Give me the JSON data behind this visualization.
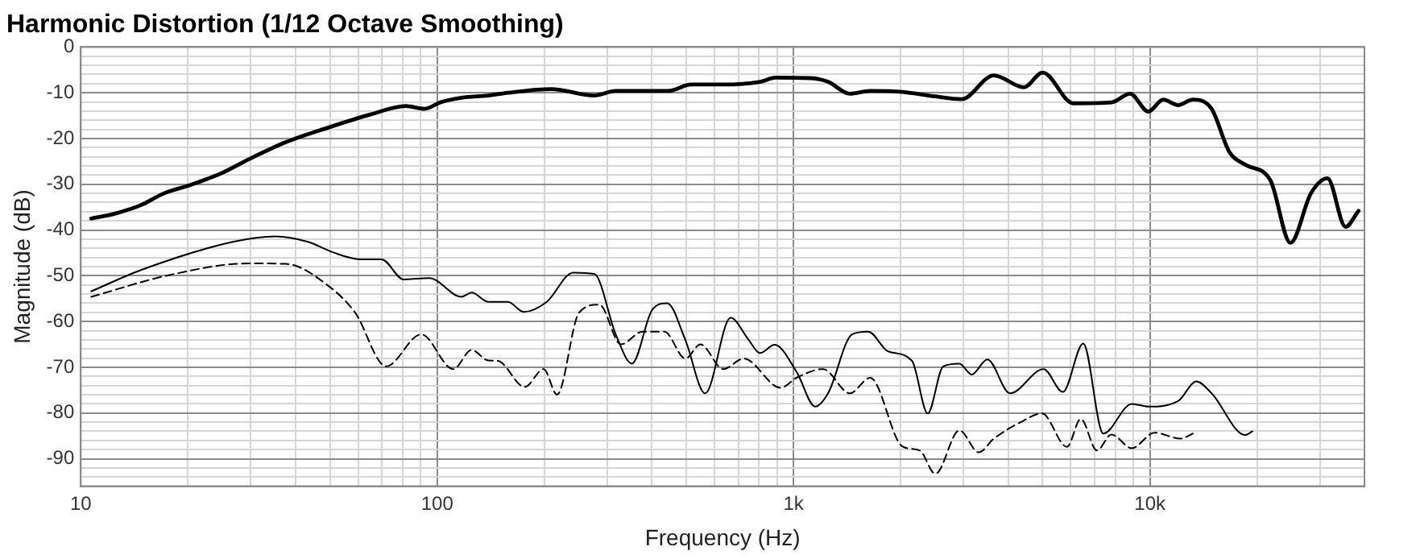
{
  "chart_data": {
    "type": "line",
    "title": "Harmonic Distortion (1/12 Octave Smoothing)",
    "xlabel": "Frequency (Hz)",
    "ylabel": "Magnitude (dB)",
    "log": "x",
    "grid": true,
    "legend": false,
    "marker": "none",
    "xlim": [
      10,
      40000
    ],
    "xticks": [
      {
        "value": 10,
        "label": "10"
      },
      {
        "value": 20,
        "label": null
      },
      {
        "value": 30,
        "label": null
      },
      {
        "value": 40,
        "label": null
      },
      {
        "value": 50,
        "label": null
      },
      {
        "value": 60,
        "label": null
      },
      {
        "value": 70,
        "label": null
      },
      {
        "value": 80,
        "label": null
      },
      {
        "value": 90,
        "label": null
      },
      {
        "value": 100,
        "label": "100"
      },
      {
        "value": 200,
        "label": null
      },
      {
        "value": 300,
        "label": null
      },
      {
        "value": 400,
        "label": null
      },
      {
        "value": 500,
        "label": null
      },
      {
        "value": 600,
        "label": null
      },
      {
        "value": 700,
        "label": null
      },
      {
        "value": 800,
        "label": null
      },
      {
        "value": 900,
        "label": null
      },
      {
        "value": 1000,
        "label": "1k"
      },
      {
        "value": 2000,
        "label": null
      },
      {
        "value": 3000,
        "label": null
      },
      {
        "value": 4000,
        "label": null
      },
      {
        "value": 5000,
        "label": null
      },
      {
        "value": 6000,
        "label": null
      },
      {
        "value": 7000,
        "label": null
      },
      {
        "value": 8000,
        "label": null
      },
      {
        "value": 9000,
        "label": null
      },
      {
        "value": 10000,
        "label": "10k"
      },
      {
        "value": 20000,
        "label": null
      },
      {
        "value": 30000,
        "label": null
      }
    ],
    "ylim": [
      -96,
      0
    ],
    "yticks": [
      0,
      {
        "value": -2,
        "label": null
      },
      {
        "value": -4,
        "label": null
      },
      {
        "value": -6,
        "label": null
      },
      {
        "value": -8,
        "label": null
      },
      -10,
      {
        "value": -12,
        "label": null
      },
      {
        "value": -14,
        "label": null
      },
      {
        "value": -16,
        "label": null
      },
      {
        "value": -18,
        "label": null
      },
      -20,
      {
        "value": -22,
        "label": null
      },
      {
        "value": -24,
        "label": null
      },
      {
        "value": -26,
        "label": null
      },
      {
        "value": -28,
        "label": null
      },
      -30,
      {
        "value": -32,
        "label": null
      },
      {
        "value": -34,
        "label": null
      },
      {
        "value": -36,
        "label": null
      },
      {
        "value": -38,
        "label": null
      },
      -40,
      {
        "value": -42,
        "label": null
      },
      {
        "value": -44,
        "label": null
      },
      {
        "value": -46,
        "label": null
      },
      {
        "value": -48,
        "label": null
      },
      -50,
      {
        "value": -52,
        "label": null
      },
      {
        "value": -54,
        "label": null
      },
      {
        "value": -56,
        "label": null
      },
      {
        "value": -58,
        "label": null
      },
      -60,
      {
        "value": -62,
        "label": null
      },
      {
        "value": -64,
        "label": null
      },
      {
        "value": -66,
        "label": null
      },
      {
        "value": -68,
        "label": null
      },
      -70,
      {
        "value": -72,
        "label": null
      },
      {
        "value": -74,
        "label": null
      },
      {
        "value": -76,
        "label": null
      },
      {
        "value": -78,
        "label": null
      },
      -80,
      {
        "value": -82,
        "label": null
      },
      {
        "value": -84,
        "label": null
      },
      {
        "value": -86,
        "label": null
      },
      {
        "value": -88,
        "label": null
      },
      -90,
      {
        "value": -92,
        "label": null
      },
      {
        "value": -94,
        "label": null
      }
    ],
    "series": [
      {
        "color": "#000000",
        "line_style": "solid",
        "x": [
          10.7,
          12.5,
          14.7,
          17.1,
          20.2,
          24.8,
          29.5,
          37.6,
          49.5,
          65.3,
          81.6,
          92.2,
          102,
          117,
          139,
          158,
          209,
          276,
          317,
          445,
          516,
          635,
          805,
          890,
          1120,
          1250,
          1440,
          1640,
          2020,
          2500,
          2960,
          3650,
          4430,
          5000,
          6100,
          7800,
          8800,
          9900,
          10900,
          12000,
          13200,
          14900,
          16700,
          18500,
          21800,
          24800,
          28300,
          31500,
          35400,
          38500
        ],
        "values": [
          -37.5,
          -36.4,
          -34.6,
          -32,
          -30.2,
          -27.6,
          -24.6,
          -20.8,
          -17.6,
          -14.7,
          -12.9,
          -13.5,
          -12.1,
          -11.1,
          -10.6,
          -10,
          -9.2,
          -10.6,
          -9.6,
          -9.6,
          -8.2,
          -8.2,
          -7.6,
          -6.7,
          -6.8,
          -7.6,
          -10.2,
          -9.6,
          -9.8,
          -10.8,
          -11.4,
          -6.2,
          -8.8,
          -5.6,
          -12.3,
          -12.1,
          -10.2,
          -14.1,
          -11.5,
          -12.7,
          -11.5,
          -13.5,
          -22.9,
          -25.7,
          -29.2,
          -42.8,
          -32,
          -28.7,
          -39.3,
          -35.8
        ]
      },
      {
        "color": "#000000",
        "line_style": "solid",
        "x": [
          10.7,
          14.8,
          26.7,
          35.2,
          43.4,
          51.1,
          60.8,
          69.8,
          80.5,
          95,
          117,
          125,
          139,
          158,
          175,
          203,
          241,
          276,
          317,
          352,
          401,
          442,
          497,
          565,
          666,
          748,
          805,
          885,
          1020,
          1150,
          1250,
          1460,
          1620,
          1840,
          2150,
          2380,
          2630,
          2920,
          3160,
          3500,
          4050,
          5030,
          5700,
          6500,
          7400,
          8900,
          9900,
          12000,
          13500,
          14900,
          18500,
          19400
        ],
        "values": [
          -53.4,
          -48.7,
          -42.6,
          -41.4,
          -42.6,
          -44.9,
          -46.4,
          -46.4,
          -50.8,
          -50.5,
          -54.6,
          -53.7,
          -55.7,
          -55.7,
          -57.9,
          -55.7,
          -49.3,
          -49.6,
          -62.8,
          -69.2,
          -57.5,
          -56,
          -64,
          -75.7,
          -59.2,
          -64,
          -66.9,
          -65.1,
          -71,
          -78.6,
          -75.7,
          -62.8,
          -62.2,
          -66.5,
          -68.6,
          -80.1,
          -69.8,
          -69.2,
          -71.6,
          -68.3,
          -75.7,
          -70.4,
          -75.4,
          -64.8,
          -84.5,
          -78,
          -78.6,
          -77.4,
          -73.1,
          -75.7,
          -84.8,
          -84
        ]
      },
      {
        "color": "#000000",
        "line_style": "dashed",
        "x": [
          10.7,
          17.6,
          29.5,
          37.6,
          49.5,
          58.9,
          71.9,
          90.2,
          111,
          125,
          139,
          148,
          176,
          199,
          217,
          250,
          285,
          328,
          377,
          434,
          497,
          548,
          635,
          725,
          920,
          1020,
          1210,
          1440,
          1640,
          2020,
          2260,
          2500,
          2920,
          3310,
          3650,
          4340,
          4980,
          5850,
          6400,
          7100,
          7800,
          8900,
          10300,
          12200,
          13200
        ],
        "values": [
          -54.6,
          -49.9,
          -47.3,
          -47.4,
          -52.2,
          -58.1,
          -69.8,
          -62.8,
          -70.4,
          -66.2,
          -68.5,
          -68.6,
          -74.3,
          -70.4,
          -76,
          -58.1,
          -56.3,
          -65,
          -62.2,
          -62.2,
          -68.1,
          -65,
          -70.4,
          -68.1,
          -74.5,
          -72.3,
          -70.4,
          -75.7,
          -72.3,
          -87.3,
          -88.2,
          -93.3,
          -83.8,
          -88.6,
          -85.6,
          -82,
          -80.1,
          -87.4,
          -81.3,
          -88.2,
          -84.7,
          -87.7,
          -84.3,
          -85.6,
          -84.5
        ]
      }
    ]
  }
}
